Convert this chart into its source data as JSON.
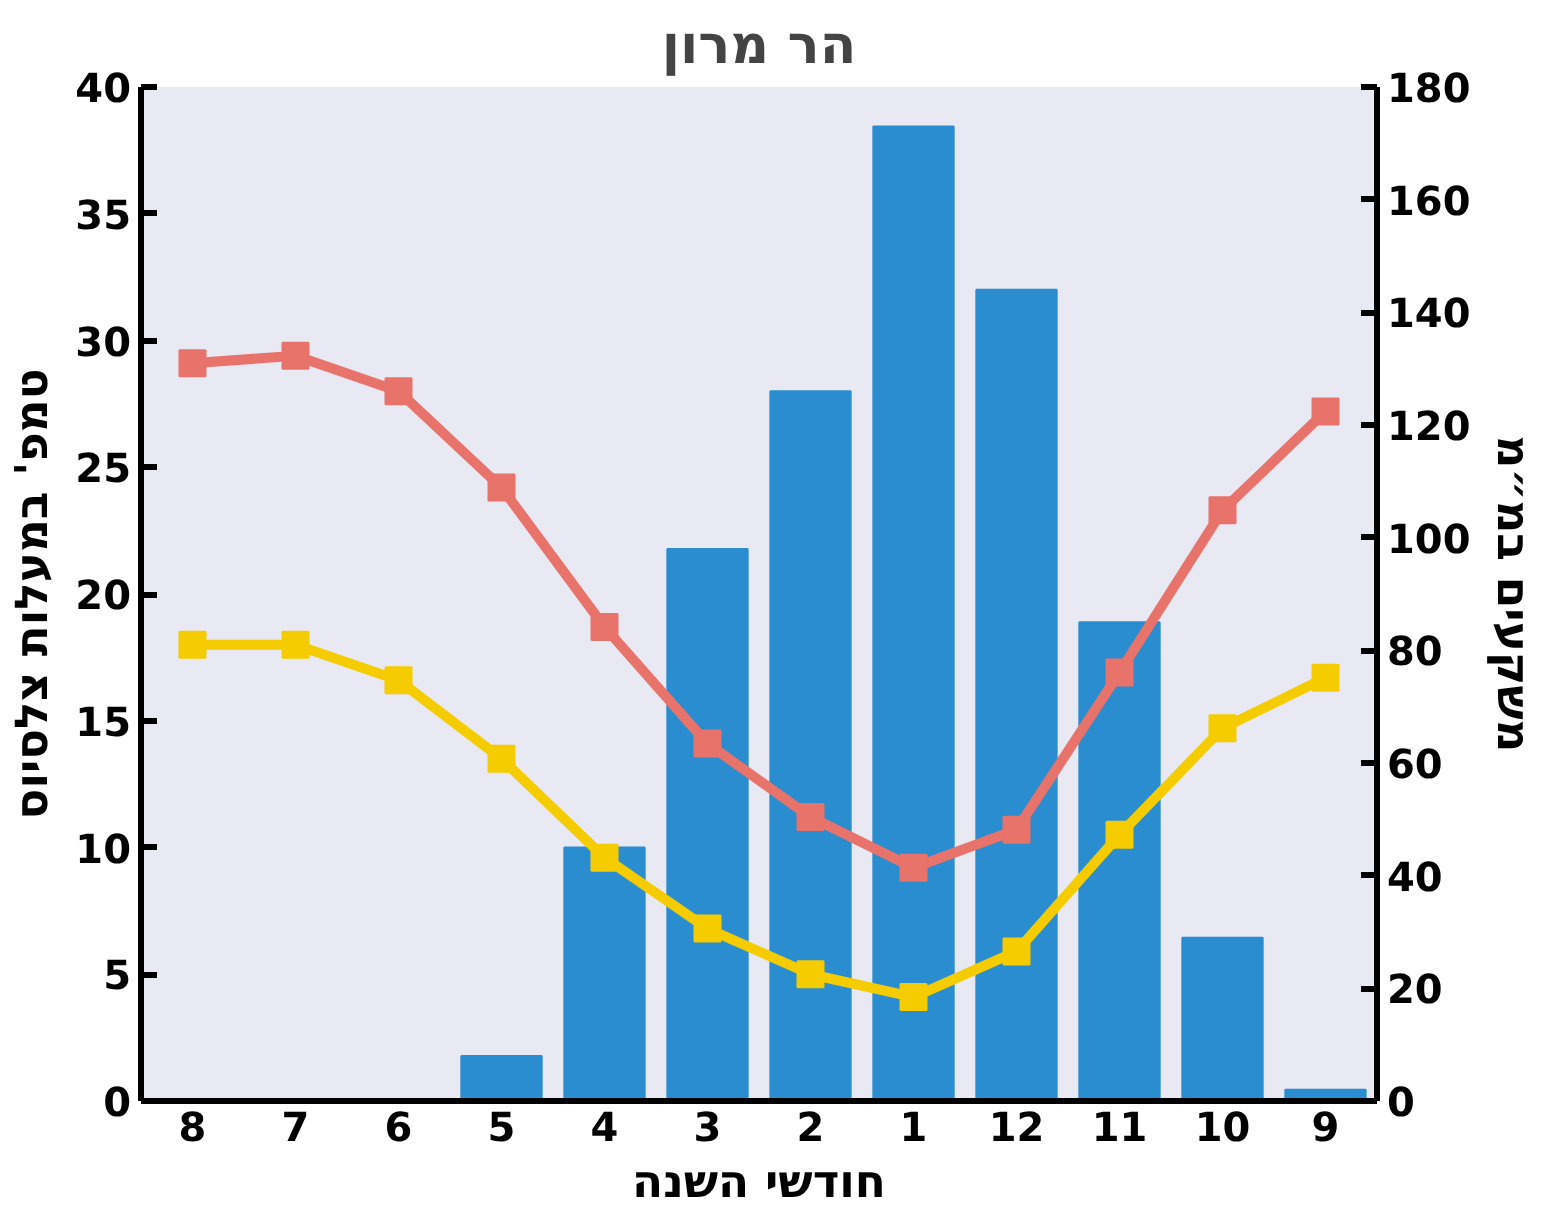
{
  "chart_data": {
    "type": "bar",
    "title": "הר מרון",
    "xlabel": "חודשי השנה",
    "ylabel": "טמפ' במעלות צלסיוס",
    "y2label": "משקעים במ״מ",
    "categories": [
      "8",
      "7",
      "6",
      "5",
      "4",
      "3",
      "2",
      "1",
      "12",
      "11",
      "10",
      "9"
    ],
    "ylim": [
      0,
      40
    ],
    "yticks": [
      0,
      5,
      10,
      15,
      20,
      25,
      30,
      35,
      40
    ],
    "y2lim": [
      0,
      180
    ],
    "y2ticks": [
      0,
      20,
      40,
      60,
      80,
      100,
      120,
      140,
      160,
      180
    ],
    "grid": false,
    "marker": "square",
    "line_style": "solid",
    "series": [
      {
        "axis": "y2",
        "color": "#2a8dcf",
        "values": [
          0,
          0,
          0,
          8,
          45,
          98,
          126,
          173,
          144,
          85,
          29,
          2
        ]
      },
      {
        "type": "line",
        "color": "#e8736a",
        "values": [
          29.1,
          29.4,
          28.0,
          24.2,
          18.7,
          14.1,
          11.2,
          9.2,
          10.7,
          16.9,
          23.3,
          27.2
        ]
      },
      {
        "type": "line",
        "color": "#f5cc00",
        "values": [
          18.0,
          18.0,
          16.6,
          13.5,
          9.6,
          6.8,
          5.0,
          4.1,
          5.9,
          10.5,
          14.7,
          16.7
        ]
      }
    ]
  }
}
